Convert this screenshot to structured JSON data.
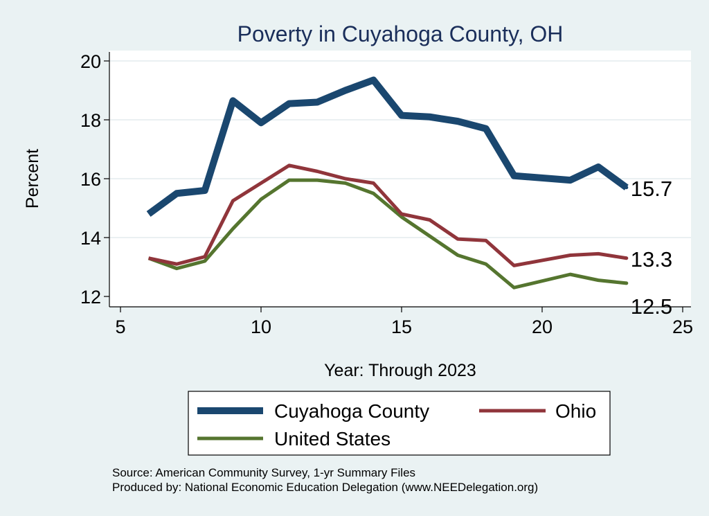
{
  "chart_data": {
    "type": "line",
    "title": "Poverty in Cuyahoga County, OH",
    "xlabel": "Year: Through 2023",
    "ylabel": "Percent",
    "xlim": [
      5,
      25
    ],
    "ylim": [
      12,
      20
    ],
    "xticks": [
      5,
      10,
      15,
      20,
      25
    ],
    "yticks": [
      12,
      14,
      16,
      18,
      20
    ],
    "grid": true,
    "legend_position": "bottom",
    "series": [
      {
        "name": "Cuyahoga County",
        "color": "#1a476f",
        "x": [
          6,
          7,
          8,
          9,
          10,
          11,
          12,
          13,
          14,
          15,
          16,
          17,
          18,
          19,
          21,
          22,
          23
        ],
        "y": [
          14.8,
          15.5,
          15.6,
          18.65,
          17.9,
          18.55,
          18.6,
          19.0,
          19.35,
          18.15,
          18.1,
          17.95,
          17.7,
          16.1,
          15.95,
          16.4,
          15.7
        ],
        "end_label": "15.7"
      },
      {
        "name": "Ohio",
        "color": "#90353b",
        "x": [
          6,
          7,
          8,
          9,
          10,
          11,
          12,
          13,
          14,
          15,
          16,
          17,
          18,
          19,
          21,
          22,
          23
        ],
        "y": [
          13.3,
          13.1,
          13.35,
          15.25,
          15.85,
          16.45,
          16.25,
          16.0,
          15.85,
          14.8,
          14.6,
          13.95,
          13.9,
          13.05,
          13.4,
          13.45,
          13.3
        ],
        "end_label": "13.3"
      },
      {
        "name": "United States",
        "color": "#55752f",
        "x": [
          6,
          7,
          8,
          9,
          10,
          11,
          12,
          13,
          14,
          15,
          16,
          17,
          18,
          19,
          21,
          22,
          23
        ],
        "y": [
          13.3,
          12.95,
          13.2,
          14.3,
          15.3,
          15.95,
          15.95,
          15.85,
          15.5,
          14.7,
          14.05,
          13.4,
          13.1,
          12.3,
          12.75,
          12.55,
          12.45
        ],
        "end_label": "12.5"
      }
    ]
  },
  "notes": {
    "source": "Source: American Community Survey, 1-yr Summary Files",
    "produced_by": "Produced by: National Economic Education Delegation (www.NEEDelegation.org)"
  }
}
